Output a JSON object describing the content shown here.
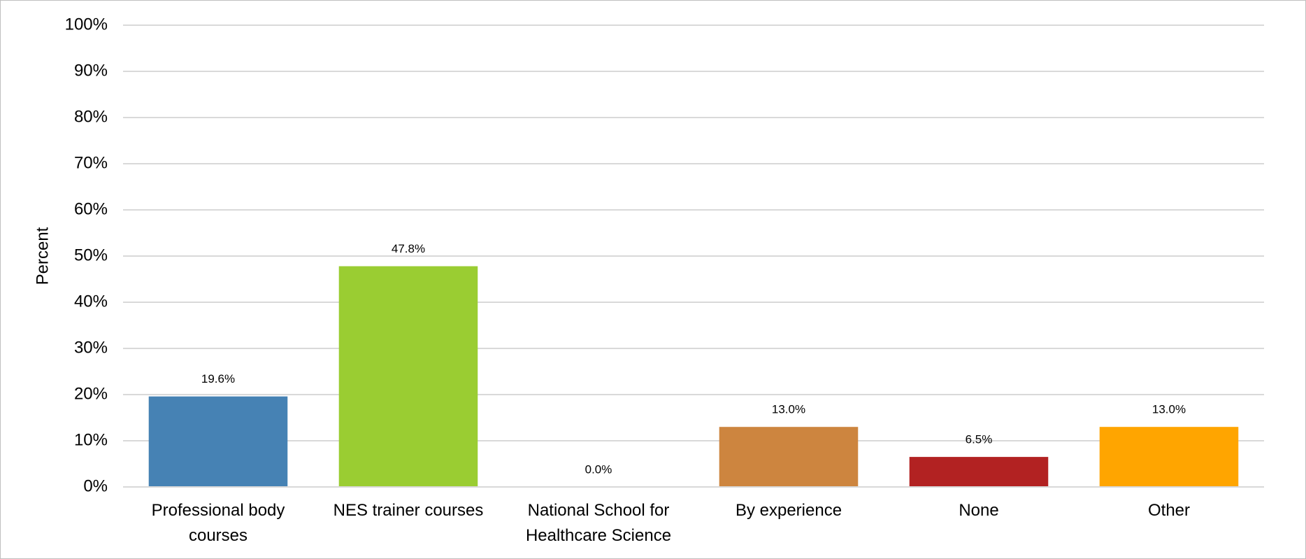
{
  "chart_data": {
    "type": "bar",
    "y_label": "Percent",
    "categories": [
      "Professional body courses",
      "NES trainer courses",
      "National School for Healthcare Science",
      "By experience",
      "None",
      "Other"
    ],
    "values": [
      19.6,
      47.8,
      0.0,
      13.0,
      6.5,
      13.0
    ],
    "value_labels": [
      "19.6%",
      "47.8%",
      "0.0%",
      "13.0%",
      "6.5%",
      "13.0%"
    ],
    "colors": [
      "#4682b4",
      "#9acd32",
      "#808080",
      "#cd853f",
      "#b22222",
      "#ffa500"
    ],
    "ylim": [
      0,
      100
    ],
    "yticks": [
      {
        "value": 0,
        "label": "0%"
      },
      {
        "value": 10,
        "label": "10%"
      },
      {
        "value": 20,
        "label": "20%"
      },
      {
        "value": 30,
        "label": "30%"
      },
      {
        "value": 40,
        "label": "40%"
      },
      {
        "value": 50,
        "label": "50%"
      },
      {
        "value": 60,
        "label": "60%"
      },
      {
        "value": 70,
        "label": "70%"
      },
      {
        "value": 80,
        "label": "80%"
      },
      {
        "value": 90,
        "label": "90%"
      },
      {
        "value": 100,
        "label": "100%"
      }
    ],
    "grid": true
  }
}
